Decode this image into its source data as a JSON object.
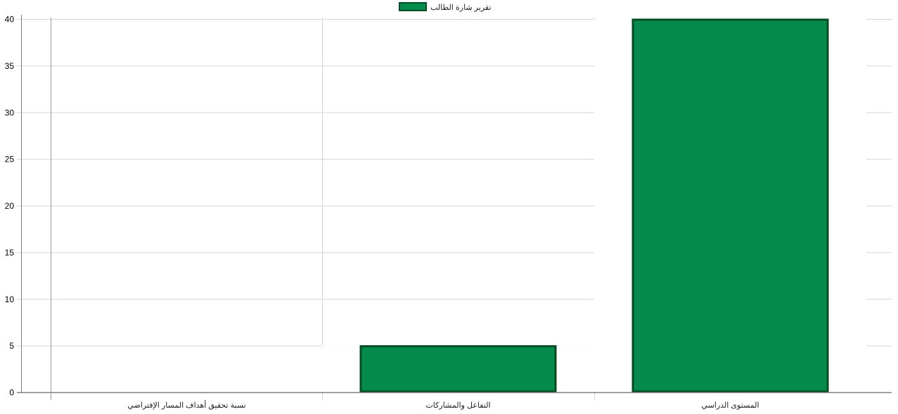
{
  "chart_data": {
    "type": "bar",
    "title": "",
    "xlabel": "",
    "ylabel": "",
    "categories": [
      "نسبة تحقيق أهداف المسار الإفتراضي",
      "التفاعل والمشاركات",
      "المستوى الدراسي"
    ],
    "series": [
      {
        "name": "تقرير شارة الطالب",
        "values": [
          0,
          5,
          40
        ]
      }
    ],
    "ylim": [
      0,
      40
    ],
    "yticks": [
      0,
      5,
      10,
      15,
      20,
      25,
      30,
      35,
      40
    ],
    "grid": true,
    "legend_position": "top-center",
    "colors": {
      "bar_fill": "#058c4d",
      "bar_border": "#034d22",
      "grid": "#d6d6d6",
      "axis": "#7f7f7f"
    }
  }
}
